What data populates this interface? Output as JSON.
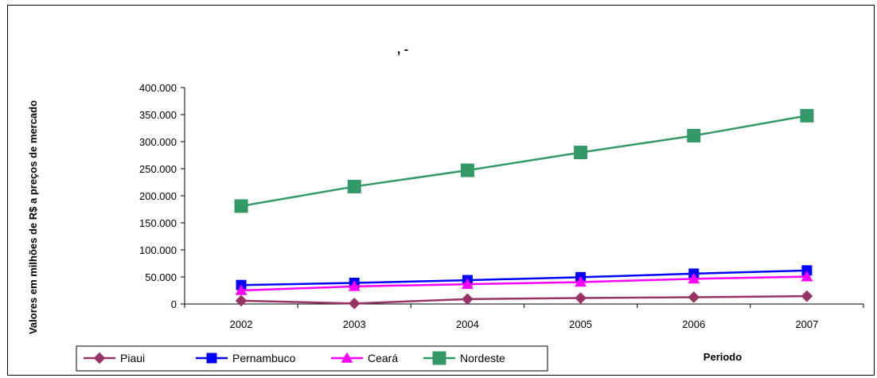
{
  "chart_data": {
    "type": "line",
    "title": ", -",
    "xlabel": "Periodo",
    "ylabel": "Valores em milhões de R$ a preços de mercado",
    "categories": [
      "2002",
      "2003",
      "2004",
      "2005",
      "2006",
      "2007"
    ],
    "ylim": [
      0,
      400000
    ],
    "y_ticks": [
      0,
      50000,
      100000,
      150000,
      200000,
      250000,
      300000,
      350000,
      400000
    ],
    "y_tick_labels": [
      "0",
      "50.000",
      "100.000",
      "150.000",
      "200.000",
      "250.000",
      "300.000",
      "350.000",
      "400.000"
    ],
    "grid": false,
    "legend_position": "bottom-left",
    "series": [
      {
        "name": "Piaui",
        "color": "#993366",
        "marker": "diamond",
        "values": [
          6000,
          1000,
          9000,
          11000,
          12500,
          14500
        ]
      },
      {
        "name": "Pernambuco",
        "color": "#0000FF",
        "marker": "square",
        "values": [
          35000,
          39000,
          44000,
          49500,
          56000,
          62000
        ]
      },
      {
        "name": "Ceará",
        "color": "#FF00FF",
        "marker": "triangle",
        "values": [
          25000,
          32500,
          36500,
          40500,
          46500,
          50500
        ]
      },
      {
        "name": "Nordeste",
        "color": "#339966",
        "marker": "square",
        "values": [
          181000,
          217000,
          247000,
          280000,
          311000,
          348000
        ]
      }
    ]
  }
}
